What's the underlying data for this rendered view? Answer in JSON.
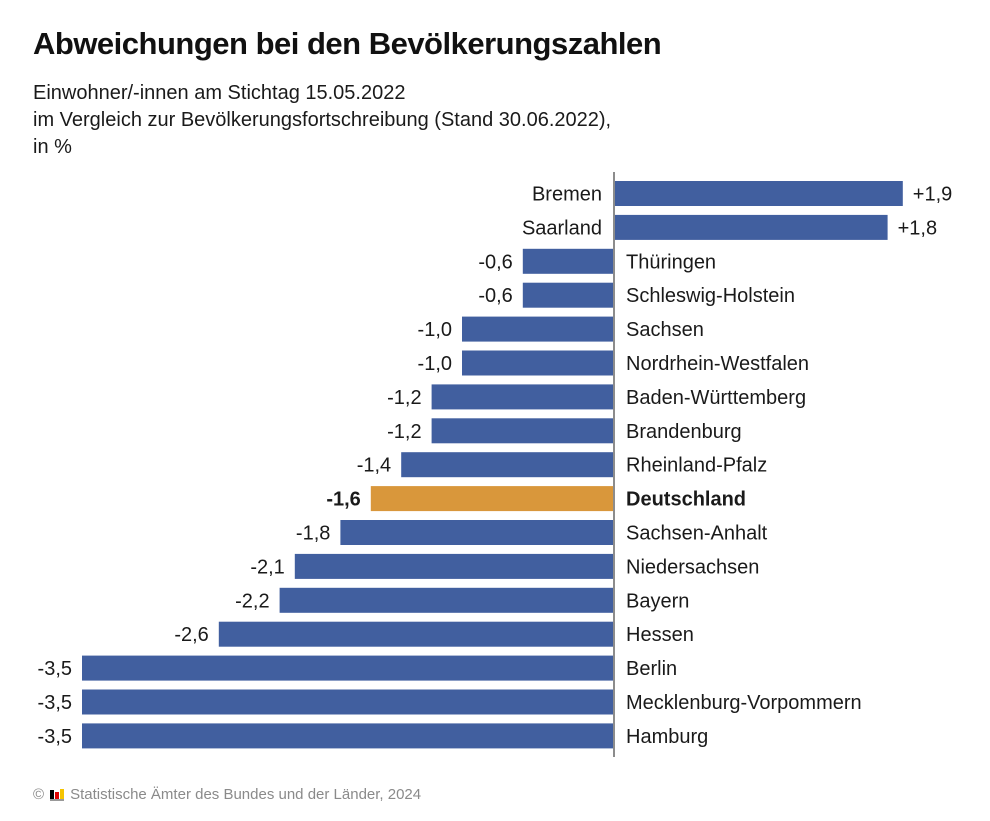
{
  "header": {
    "title": "Abweichungen bei den Bevölkerungszahlen",
    "subtitle_lines": [
      "Einwohner/-innen am Stichtag 15.05.2022",
      "im Vergleich zur Bevölkerungsfortschreibung (Stand 30.06.2022),",
      "in %"
    ]
  },
  "footer": {
    "copyright_symbol": "©",
    "logo_icon": "statistik-logo-icon",
    "source": "Statistische Ämter des Bundes und der Länder, 2024"
  },
  "colors": {
    "bar_default": "#415f9f",
    "bar_highlight": "#d9973b",
    "axis": "#8c8c8c",
    "text": "#1a1a1a"
  },
  "chart_data": {
    "type": "bar",
    "orientation": "horizontal",
    "title": "Abweichungen bei den Bevölkerungszahlen",
    "subtitle": "Einwohner/-innen am Stichtag 15.05.2022 im Vergleich zur Bevölkerungsfortschreibung (Stand 30.06.2022), in %",
    "xlabel": "",
    "ylabel": "",
    "xlim": [
      -3.5,
      1.9
    ],
    "grid": false,
    "legend": "none",
    "highlight_category": "Deutschland",
    "categories": [
      "Bremen",
      "Saarland",
      "Thüringen",
      "Schleswig-Holstein",
      "Sachsen",
      "Nordrhein-Westfalen",
      "Baden-Württemberg",
      "Brandenburg",
      "Rheinland-Pfalz",
      "Deutschland",
      "Sachsen-Anhalt",
      "Niedersachsen",
      "Bayern",
      "Hessen",
      "Berlin",
      "Mecklenburg-Vorpommern",
      "Hamburg"
    ],
    "values": [
      1.9,
      1.8,
      -0.6,
      -0.6,
      -1.0,
      -1.0,
      -1.2,
      -1.2,
      -1.4,
      -1.6,
      -1.8,
      -2.1,
      -2.2,
      -2.6,
      -3.5,
      -3.5,
      -3.5
    ],
    "value_labels": [
      "+1,9",
      "+1,8",
      "-0,6",
      "-0,6",
      "-1,0",
      "-1,0",
      "-1,2",
      "-1,2",
      "-1,4",
      "-1,6",
      "-1,8",
      "-2,1",
      "-2,2",
      "-2,6",
      "-3,5",
      "-3,5",
      "-3,5"
    ]
  }
}
